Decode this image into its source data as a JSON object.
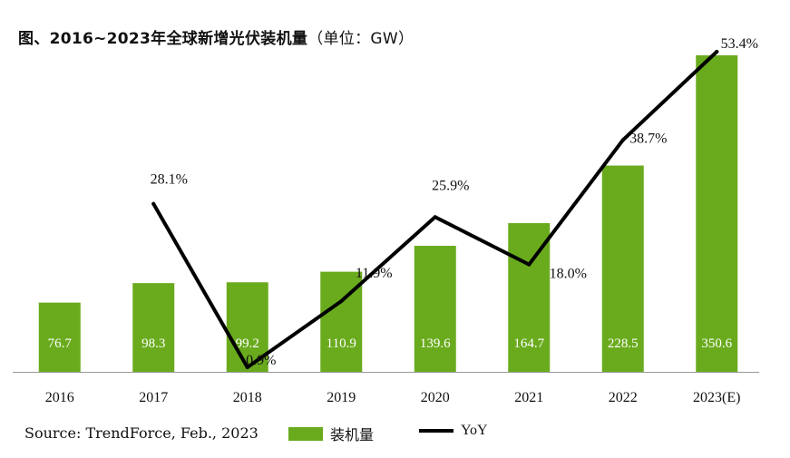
{
  "title": {
    "main": "图、2016~2023年全球新增光伏装机量",
    "unit": "（单位：GW）"
  },
  "source": "Source: TrendForce, Feb., 2023",
  "legend": {
    "bar_label": "装机量",
    "line_label": "YoY"
  },
  "colors": {
    "bar": "#6aab1e",
    "line": "#000000",
    "bar_label_text": "#ffffff"
  },
  "chart_data": {
    "type": "bar",
    "categories": [
      "2016",
      "2017",
      "2018",
      "2019",
      "2020",
      "2021",
      "2022",
      "2023(E)"
    ],
    "series": [
      {
        "name": "装机量",
        "type": "bar",
        "values": [
          76.7,
          98.3,
          99.2,
          110.9,
          139.6,
          164.7,
          228.5,
          350.6
        ],
        "labels": [
          "76.7",
          "98.3",
          "99.2",
          "110.9",
          "139.6",
          "164.7",
          "228.5",
          "350.6"
        ]
      },
      {
        "name": "YoY",
        "type": "line",
        "values": [
          null,
          28.1,
          0.9,
          11.9,
          25.9,
          18.0,
          38.7,
          53.4
        ],
        "labels": [
          "",
          "28.1%",
          "0.9%",
          "11.9%",
          "25.9%",
          "18.0%",
          "38.7%",
          "53.4%"
        ]
      }
    ],
    "bar_ylim": [
      0,
      350.6
    ],
    "line_ylim": [
      0.9,
      53.4
    ],
    "legend_position": "bottom"
  }
}
